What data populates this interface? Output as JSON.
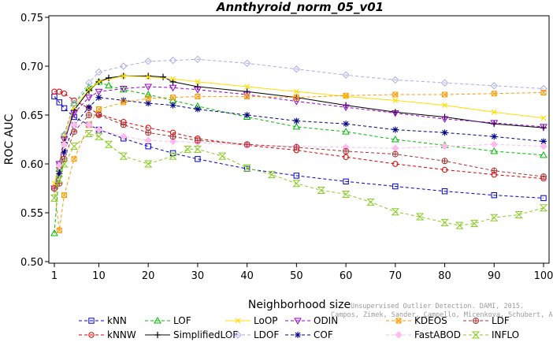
{
  "chart_data": {
    "type": "line",
    "title": "Annthyroid_norm_05_v01",
    "xlabel": "Neighborhood size",
    "ylabel": "ROC AUC",
    "xlim": [
      1,
      100
    ],
    "ylim": [
      0.5,
      0.75
    ],
    "xticks": [
      1,
      10,
      20,
      30,
      40,
      50,
      60,
      70,
      80,
      90,
      100
    ],
    "yticks": [
      0.5,
      0.55,
      0.6,
      0.65,
      0.7,
      0.75
    ],
    "ytick_labels": [
      "0.50",
      "0.55",
      "0.60",
      "0.65",
      "0.70",
      "0.75"
    ],
    "grid": false,
    "legend_position": "bottom",
    "series": [
      {
        "name": "kNN",
        "color": "#0000cc",
        "marker": "square",
        "dash": "4,3",
        "points": [
          [
            1,
            0.669
          ],
          [
            2,
            0.663
          ],
          [
            3,
            0.657
          ],
          [
            5,
            0.648
          ],
          [
            8,
            0.64
          ],
          [
            10,
            0.635
          ],
          [
            15,
            0.626
          ],
          [
            20,
            0.618
          ],
          [
            25,
            0.611
          ],
          [
            30,
            0.605
          ],
          [
            40,
            0.595
          ],
          [
            50,
            0.588
          ],
          [
            60,
            0.582
          ],
          [
            70,
            0.577
          ],
          [
            80,
            0.572
          ],
          [
            90,
            0.568
          ],
          [
            100,
            0.565
          ]
        ]
      },
      {
        "name": "kNNW",
        "color": "#dd0000",
        "marker": "circle",
        "dash": "4,3",
        "points": [
          [
            1,
            0.674
          ],
          [
            2,
            0.674
          ],
          [
            3,
            0.672
          ],
          [
            5,
            0.665
          ],
          [
            8,
            0.657
          ],
          [
            10,
            0.651
          ],
          [
            15,
            0.643
          ],
          [
            20,
            0.637
          ],
          [
            25,
            0.632
          ],
          [
            30,
            0.626
          ],
          [
            40,
            0.619
          ],
          [
            50,
            0.614
          ],
          [
            60,
            0.607
          ],
          [
            70,
            0.6
          ],
          [
            80,
            0.594
          ],
          [
            90,
            0.589
          ],
          [
            100,
            0.585
          ]
        ]
      },
      {
        "name": "LOF",
        "color": "#00bb00",
        "marker": "triangle-up",
        "dash": "4,3",
        "points": [
          [
            1,
            0.529
          ],
          [
            2,
            0.595
          ],
          [
            3,
            0.63
          ],
          [
            5,
            0.662
          ],
          [
            8,
            0.678
          ],
          [
            10,
            0.684
          ],
          [
            12,
            0.68
          ],
          [
            15,
            0.676
          ],
          [
            20,
            0.671
          ],
          [
            25,
            0.665
          ],
          [
            30,
            0.659
          ],
          [
            40,
            0.648
          ],
          [
            50,
            0.638
          ],
          [
            60,
            0.633
          ],
          [
            70,
            0.625
          ],
          [
            80,
            0.619
          ],
          [
            90,
            0.613
          ],
          [
            100,
            0.609
          ]
        ]
      },
      {
        "name": "SimplifiedLOF",
        "color": "#000000",
        "marker": "plus",
        "dash": "",
        "points": [
          [
            1,
            0.574
          ],
          [
            2,
            0.596
          ],
          [
            3,
            0.622
          ],
          [
            5,
            0.655
          ],
          [
            8,
            0.675
          ],
          [
            10,
            0.684
          ],
          [
            12,
            0.688
          ],
          [
            15,
            0.69
          ],
          [
            20,
            0.69
          ],
          [
            23,
            0.689
          ],
          [
            25,
            0.684
          ],
          [
            30,
            0.679
          ],
          [
            40,
            0.674
          ],
          [
            50,
            0.668
          ],
          [
            60,
            0.66
          ],
          [
            70,
            0.653
          ],
          [
            80,
            0.648
          ],
          [
            90,
            0.641
          ],
          [
            100,
            0.637
          ]
        ]
      },
      {
        "name": "LoOP",
        "color": "#ffdd00",
        "marker": "x",
        "dash": "",
        "points": [
          [
            1,
            0.58
          ],
          [
            2,
            0.6
          ],
          [
            3,
            0.628
          ],
          [
            5,
            0.658
          ],
          [
            8,
            0.676
          ],
          [
            10,
            0.684
          ],
          [
            15,
            0.69
          ],
          [
            20,
            0.689
          ],
          [
            25,
            0.687
          ],
          [
            30,
            0.684
          ],
          [
            40,
            0.679
          ],
          [
            50,
            0.674
          ],
          [
            60,
            0.669
          ],
          [
            70,
            0.665
          ],
          [
            80,
            0.66
          ],
          [
            90,
            0.653
          ],
          [
            100,
            0.647
          ]
        ]
      },
      {
        "name": "LDOF",
        "color": "#aaaaee",
        "marker": "diamond",
        "dash": "4,3",
        "points": [
          [
            1,
            0.575
          ],
          [
            2,
            0.6
          ],
          [
            3,
            0.63
          ],
          [
            5,
            0.662
          ],
          [
            8,
            0.683
          ],
          [
            10,
            0.694
          ],
          [
            15,
            0.7
          ],
          [
            20,
            0.705
          ],
          [
            25,
            0.706
          ],
          [
            30,
            0.707
          ],
          [
            40,
            0.703
          ],
          [
            50,
            0.697
          ],
          [
            60,
            0.691
          ],
          [
            70,
            0.686
          ],
          [
            80,
            0.683
          ],
          [
            90,
            0.68
          ],
          [
            100,
            0.677
          ]
        ]
      },
      {
        "name": "ODIN",
        "color": "#9900cc",
        "marker": "triangle-down",
        "dash": "4,3",
        "points": [
          [
            1,
            0.575
          ],
          [
            2,
            0.6
          ],
          [
            3,
            0.625
          ],
          [
            5,
            0.652
          ],
          [
            8,
            0.668
          ],
          [
            10,
            0.674
          ],
          [
            15,
            0.677
          ],
          [
            20,
            0.679
          ],
          [
            25,
            0.678
          ],
          [
            30,
            0.676
          ],
          [
            40,
            0.671
          ],
          [
            50,
            0.664
          ],
          [
            60,
            0.658
          ],
          [
            70,
            0.652
          ],
          [
            80,
            0.646
          ],
          [
            90,
            0.642
          ],
          [
            100,
            0.638
          ]
        ]
      },
      {
        "name": "COF",
        "color": "#000088",
        "marker": "asterisk",
        "dash": "4,3",
        "points": [
          [
            1,
            0.575
          ],
          [
            2,
            0.59
          ],
          [
            3,
            0.612
          ],
          [
            5,
            0.64
          ],
          [
            8,
            0.658
          ],
          [
            10,
            0.668
          ],
          [
            15,
            0.665
          ],
          [
            20,
            0.662
          ],
          [
            25,
            0.66
          ],
          [
            30,
            0.656
          ],
          [
            40,
            0.65
          ],
          [
            50,
            0.644
          ],
          [
            60,
            0.641
          ],
          [
            70,
            0.635
          ],
          [
            80,
            0.632
          ],
          [
            90,
            0.628
          ],
          [
            100,
            0.623
          ]
        ]
      },
      {
        "name": "KDEOS",
        "color": "#ff9900",
        "marker": "square-x",
        "dash": "4,3",
        "points": [
          [
            1,
            0.575
          ],
          [
            2,
            0.532
          ],
          [
            3,
            0.568
          ],
          [
            5,
            0.605
          ],
          [
            8,
            0.64
          ],
          [
            10,
            0.656
          ],
          [
            15,
            0.663
          ],
          [
            20,
            0.667
          ],
          [
            25,
            0.668
          ],
          [
            30,
            0.669
          ],
          [
            40,
            0.669
          ],
          [
            50,
            0.668
          ],
          [
            60,
            0.67
          ],
          [
            70,
            0.671
          ],
          [
            80,
            0.671
          ],
          [
            90,
            0.672
          ],
          [
            100,
            0.673
          ]
        ]
      },
      {
        "name": "FastABOD",
        "color": "#ffbbee",
        "marker": "diamond-filled",
        "dash": "4,3",
        "points": [
          [
            1,
            0.575
          ],
          [
            2,
            0.598
          ],
          [
            3,
            0.62
          ],
          [
            5,
            0.64
          ],
          [
            8,
            0.64
          ],
          [
            10,
            0.635
          ],
          [
            15,
            0.628
          ],
          [
            20,
            0.624
          ],
          [
            25,
            0.623
          ],
          [
            30,
            0.622
          ],
          [
            40,
            0.619
          ],
          [
            50,
            0.618
          ],
          [
            60,
            0.617
          ],
          [
            70,
            0.616
          ],
          [
            80,
            0.618
          ],
          [
            90,
            0.62
          ],
          [
            100,
            0.618
          ]
        ]
      },
      {
        "name": "LDF",
        "color": "#aa3333",
        "marker": "circle-plus",
        "dash": "4,3",
        "points": [
          [
            1,
            0.575
          ],
          [
            2,
            0.58
          ],
          [
            3,
            0.605
          ],
          [
            5,
            0.633
          ],
          [
            8,
            0.65
          ],
          [
            10,
            0.65
          ],
          [
            15,
            0.64
          ],
          [
            20,
            0.632
          ],
          [
            25,
            0.628
          ],
          [
            30,
            0.624
          ],
          [
            40,
            0.62
          ],
          [
            50,
            0.617
          ],
          [
            60,
            0.613
          ],
          [
            70,
            0.61
          ],
          [
            80,
            0.603
          ],
          [
            90,
            0.593
          ],
          [
            100,
            0.587
          ]
        ]
      },
      {
        "name": "INFLO",
        "color": "#88cc22",
        "marker": "hourglass",
        "dash": "4,3",
        "points": [
          [
            1,
            0.565
          ],
          [
            2,
            0.584
          ],
          [
            3,
            0.6
          ],
          [
            5,
            0.618
          ],
          [
            8,
            0.631
          ],
          [
            10,
            0.628
          ],
          [
            12,
            0.62
          ],
          [
            15,
            0.608
          ],
          [
            20,
            0.6
          ],
          [
            25,
            0.608
          ],
          [
            28,
            0.615
          ],
          [
            30,
            0.615
          ],
          [
            35,
            0.608
          ],
          [
            40,
            0.596
          ],
          [
            45,
            0.589
          ],
          [
            50,
            0.58
          ],
          [
            55,
            0.573
          ],
          [
            60,
            0.569
          ],
          [
            65,
            0.561
          ],
          [
            70,
            0.551
          ],
          [
            75,
            0.546
          ],
          [
            80,
            0.54
          ],
          [
            83,
            0.537
          ],
          [
            86,
            0.539
          ],
          [
            90,
            0.545
          ],
          [
            95,
            0.548
          ],
          [
            100,
            0.555
          ]
        ]
      }
    ]
  },
  "watermark": {
    "line1": "Unsupervised Outlier Detection. DAMI, 2015.",
    "line2": "Campos, Zimek, Sander, Campello, Micenkova, Schubert, Assent, Houle"
  }
}
